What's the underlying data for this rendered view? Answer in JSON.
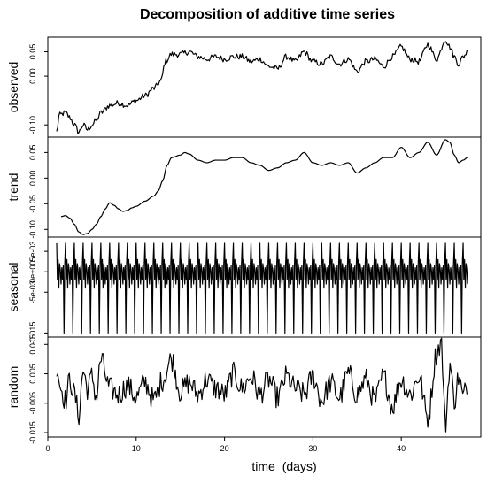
{
  "chart_data": {
    "type": "line",
    "title": "Decomposition of additive time series",
    "xlabel_main": "time",
    "xlabel_unit": "(days)",
    "xlim": [
      0,
      49
    ],
    "x_ticks": [
      {
        "value": 0,
        "label": "0"
      },
      {
        "value": 10,
        "label": "10"
      },
      {
        "value": 20,
        "label": "20"
      },
      {
        "value": 30,
        "label": "30"
      },
      {
        "value": 40,
        "label": "40"
      }
    ],
    "x_start": 1,
    "x_end": 47.5,
    "panels": [
      {
        "name": "observed",
        "ylim": [
          -0.125,
          0.08
        ],
        "y_ticks": [
          {
            "value": -0.1,
            "label": "-0.10"
          },
          {
            "value": 0.0,
            "label": "0.00"
          },
          {
            "value": 0.05,
            "label": "0.05"
          }
        ],
        "noise": 0.006,
        "anchors": [
          [
            1,
            -0.115
          ],
          [
            1.3,
            -0.08
          ],
          [
            2,
            -0.075
          ],
          [
            2.5,
            -0.085
          ],
          [
            3,
            -0.1
          ],
          [
            3.5,
            -0.115
          ],
          [
            4,
            -0.1
          ],
          [
            4.5,
            -0.11
          ],
          [
            5,
            -0.1
          ],
          [
            5.5,
            -0.09
          ],
          [
            6,
            -0.075
          ],
          [
            7,
            -0.06
          ],
          [
            8,
            -0.055
          ],
          [
            9,
            -0.06
          ],
          [
            10,
            -0.05
          ],
          [
            11,
            -0.04
          ],
          [
            12,
            -0.025
          ],
          [
            12.8,
            -0.01
          ],
          [
            13.3,
            0.03
          ],
          [
            14,
            0.045
          ],
          [
            15,
            0.045
          ],
          [
            16,
            0.05
          ],
          [
            17,
            0.04
          ],
          [
            18,
            0.035
          ],
          [
            19,
            0.04
          ],
          [
            20,
            0.035
          ],
          [
            21,
            0.04
          ],
          [
            22,
            0.04
          ],
          [
            23,
            0.03
          ],
          [
            24,
            0.035
          ],
          [
            25,
            0.02
          ],
          [
            26,
            0.015
          ],
          [
            27,
            0.04
          ],
          [
            28,
            0.03
          ],
          [
            29,
            0.05
          ],
          [
            30,
            0.03
          ],
          [
            31,
            0.025
          ],
          [
            32,
            0.04
          ],
          [
            33,
            0.025
          ],
          [
            34,
            0.035
          ],
          [
            35,
            0.01
          ],
          [
            36,
            0.03
          ],
          [
            37,
            0.035
          ],
          [
            38,
            0.02
          ],
          [
            39,
            0.04
          ],
          [
            40,
            0.06
          ],
          [
            41,
            0.035
          ],
          [
            42,
            0.03
          ],
          [
            43,
            0.065
          ],
          [
            44,
            0.035
          ],
          [
            45,
            0.075
          ],
          [
            45.5,
            0.06
          ],
          [
            46,
            0.04
          ],
          [
            46.5,
            0.025
          ],
          [
            47,
            0.04
          ],
          [
            47.5,
            0.05
          ]
        ]
      },
      {
        "name": "trend",
        "ylim": [
          -0.115,
          0.08
        ],
        "y_ticks": [
          {
            "value": -0.1,
            "label": "-0.10"
          },
          {
            "value": -0.05,
            "label": "-0.05"
          },
          {
            "value": 0.0,
            "label": "0.00"
          },
          {
            "value": 0.05,
            "label": "0.05"
          }
        ],
        "noise": 0,
        "anchors": [
          [
            1.5,
            -0.075
          ],
          [
            2,
            -0.073
          ],
          [
            2.5,
            -0.078
          ],
          [
            3,
            -0.09
          ],
          [
            3.5,
            -0.105
          ],
          [
            4,
            -0.11
          ],
          [
            4.5,
            -0.108
          ],
          [
            5,
            -0.1
          ],
          [
            5.5,
            -0.09
          ],
          [
            6,
            -0.075
          ],
          [
            6.5,
            -0.06
          ],
          [
            7,
            -0.048
          ],
          [
            7.5,
            -0.053
          ],
          [
            8,
            -0.06
          ],
          [
            8.5,
            -0.065
          ],
          [
            9,
            -0.063
          ],
          [
            9.5,
            -0.058
          ],
          [
            10,
            -0.055
          ],
          [
            11,
            -0.045
          ],
          [
            12,
            -0.035
          ],
          [
            12.5,
            -0.025
          ],
          [
            13,
            -0.005
          ],
          [
            13.5,
            0.025
          ],
          [
            14,
            0.04
          ],
          [
            15,
            0.045
          ],
          [
            15.5,
            0.05
          ],
          [
            16,
            0.047
          ],
          [
            17,
            0.035
          ],
          [
            18,
            0.03
          ],
          [
            19,
            0.035
          ],
          [
            20,
            0.035
          ],
          [
            21,
            0.04
          ],
          [
            22,
            0.04
          ],
          [
            23,
            0.03
          ],
          [
            24,
            0.025
          ],
          [
            25,
            0.015
          ],
          [
            26,
            0.02
          ],
          [
            27,
            0.03
          ],
          [
            28,
            0.035
          ],
          [
            29,
            0.05
          ],
          [
            30,
            0.03
          ],
          [
            31,
            0.025
          ],
          [
            32,
            0.03
          ],
          [
            33,
            0.025
          ],
          [
            34,
            0.03
          ],
          [
            35,
            0.01
          ],
          [
            36,
            0.02
          ],
          [
            37,
            0.03
          ],
          [
            38,
            0.04
          ],
          [
            39,
            0.04
          ],
          [
            40,
            0.06
          ],
          [
            41,
            0.04
          ],
          [
            42,
            0.05
          ],
          [
            43,
            0.07
          ],
          [
            44,
            0.045
          ],
          [
            45,
            0.075
          ],
          [
            45.5,
            0.07
          ],
          [
            46,
            0.045
          ],
          [
            46.5,
            0.03
          ],
          [
            47,
            0.035
          ],
          [
            47.5,
            0.04
          ]
        ]
      },
      {
        "name": "seasonal",
        "ylim": [
          -0.016,
          0.0085
        ],
        "y_ticks": [
          {
            "value": -0.015,
            "label": "-0.015"
          },
          {
            "value": -0.005,
            "label": "-5e-03"
          },
          {
            "value": 0.0,
            "label": "0e+00"
          },
          {
            "value": 0.005,
            "label": "5e-03"
          }
        ],
        "period": 1,
        "pattern": [
          0.007,
          -0.002,
          0.003,
          -0.004,
          0.002,
          0.0005,
          -0.003,
          0.001,
          -0.002,
          0.0015,
          -0.015,
          0.002
        ]
      },
      {
        "name": "random",
        "ylim": [
          -0.0165,
          0.0175
        ],
        "y_ticks": [
          {
            "value": -0.015,
            "label": "-0.015"
          },
          {
            "value": -0.005,
            "label": "-0.005"
          },
          {
            "value": 0.005,
            "label": "0.005"
          },
          {
            "value": 0.015,
            "label": "0.015"
          }
        ],
        "noise": 0.004,
        "anchors": [
          [
            1,
            0.008
          ],
          [
            1.5,
            0.0
          ],
          [
            2,
            -0.004
          ],
          [
            2.5,
            0.003
          ],
          [
            3,
            -0.002
          ],
          [
            3.5,
            -0.009
          ],
          [
            4,
            0.006
          ],
          [
            4.5,
            0.0
          ],
          [
            5,
            0.004
          ],
          [
            5.5,
            -0.003
          ],
          [
            6,
            0.01
          ],
          [
            7,
            0.0
          ],
          [
            8,
            -0.002
          ],
          [
            9,
            0.001
          ],
          [
            10,
            -0.003
          ],
          [
            11,
            0.002
          ],
          [
            12,
            -0.004
          ],
          [
            13,
            0.003
          ],
          [
            14,
            0.01
          ],
          [
            15,
            -0.001
          ],
          [
            16,
            0.002
          ],
          [
            17,
            -0.002
          ],
          [
            18,
            0.003
          ],
          [
            19,
            0.0
          ],
          [
            20,
            -0.002
          ],
          [
            21,
            0.005
          ],
          [
            22,
            0.0
          ],
          [
            23,
            0.004
          ],
          [
            24,
            -0.002
          ],
          [
            25,
            0.003
          ],
          [
            26,
            -0.003
          ],
          [
            27,
            0.004
          ],
          [
            28,
            0.0
          ],
          [
            29,
            -0.002
          ],
          [
            30,
            0.004
          ],
          [
            31,
            -0.004
          ],
          [
            32,
            0.002
          ],
          [
            33,
            -0.003
          ],
          [
            34,
            0.005
          ],
          [
            35,
            -0.002
          ],
          [
            36,
            0.003
          ],
          [
            37,
            -0.004
          ],
          [
            38,
            0.004
          ],
          [
            39,
            -0.006
          ],
          [
            40,
            0.003
          ],
          [
            41,
            -0.002
          ],
          [
            42,
            0.004
          ],
          [
            43,
            -0.01
          ],
          [
            44,
            0.012
          ],
          [
            44.5,
            0.016
          ],
          [
            45,
            -0.012
          ],
          [
            45.5,
            0.008
          ],
          [
            46,
            -0.004
          ],
          [
            46.5,
            0.004
          ],
          [
            47,
            -0.003
          ],
          [
            47.5,
            0.002
          ]
        ]
      }
    ]
  }
}
